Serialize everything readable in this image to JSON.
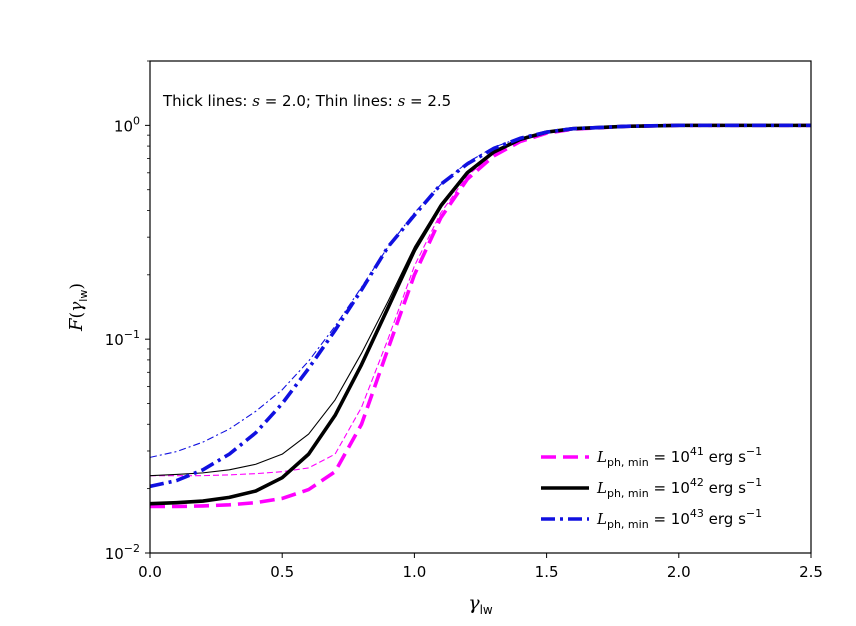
{
  "chart_data": {
    "type": "line",
    "title": "",
    "xlabel": "γ_lw",
    "ylabel": "F(γ_lw)",
    "xlim": [
      0.0,
      2.5
    ],
    "ylim": [
      0.01,
      2.0
    ],
    "yscale": "log",
    "x_ticks": [
      0.0,
      0.5,
      1.0,
      1.5,
      2.0,
      2.5
    ],
    "x_tick_labels": [
      "0.0",
      "0.5",
      "1.0",
      "1.5",
      "2.0",
      "2.5"
    ],
    "y_ticks": [
      0.01,
      0.1,
      1.0
    ],
    "y_tick_labels": [
      "10^-2",
      "10^-1",
      "10^0"
    ],
    "grid": false,
    "legend_position": "lower-right",
    "annotation": "Thick lines: s = 2.0; Thin lines: s = 2.5",
    "colors": {
      "magenta": "#ff00ff",
      "black": "#000000",
      "blue": "#1010e0"
    },
    "series": [
      {
        "name": "L_ph,min = 10^41 erg s^-1",
        "legend_label": {
          "sym": "L",
          "sub": "ph, min",
          "eq": " = 10",
          "exp": "41",
          "unit": " erg s",
          "uexp": "−1"
        },
        "color": "#ff00ff",
        "dash": "dashed",
        "width": "thick",
        "x": [
          0.0,
          0.1,
          0.2,
          0.3,
          0.4,
          0.5,
          0.6,
          0.7,
          0.8,
          0.9,
          1.0,
          1.1,
          1.2,
          1.3,
          1.4,
          1.5,
          1.6,
          1.8,
          2.0,
          2.2,
          2.5
        ],
        "y": [
          0.0165,
          0.0165,
          0.0166,
          0.0168,
          0.0172,
          0.018,
          0.0198,
          0.024,
          0.04,
          0.09,
          0.2,
          0.37,
          0.56,
          0.72,
          0.84,
          0.92,
          0.96,
          0.99,
          1.0,
          1.0,
          1.0
        ]
      },
      {
        "name": "L_ph,min = 10^42 erg s^-1",
        "legend_label": {
          "sym": "L",
          "sub": "ph, min",
          "eq": " = 10",
          "exp": "42",
          "unit": " erg s",
          "uexp": "−1"
        },
        "color": "#000000",
        "dash": "solid",
        "width": "thick",
        "x": [
          0.0,
          0.1,
          0.2,
          0.3,
          0.4,
          0.5,
          0.6,
          0.7,
          0.8,
          0.9,
          1.0,
          1.1,
          1.2,
          1.3,
          1.4,
          1.5,
          1.6,
          1.8,
          2.0,
          2.2,
          2.5
        ],
        "y": [
          0.017,
          0.0172,
          0.0175,
          0.0182,
          0.0195,
          0.0225,
          0.029,
          0.044,
          0.076,
          0.14,
          0.26,
          0.42,
          0.6,
          0.75,
          0.86,
          0.93,
          0.965,
          0.99,
          1.0,
          1.0,
          1.0
        ]
      },
      {
        "name": "L_ph,min = 10^43 erg s^-1",
        "legend_label": {
          "sym": "L",
          "sub": "ph, min",
          "eq": " = 10",
          "exp": "43",
          "unit": " erg s",
          "uexp": "−1"
        },
        "color": "#1010e0",
        "dash": "dashdot",
        "width": "thick",
        "x": [
          0.0,
          0.1,
          0.2,
          0.3,
          0.4,
          0.5,
          0.6,
          0.7,
          0.8,
          0.9,
          1.0,
          1.1,
          1.2,
          1.3,
          1.4,
          1.5,
          1.6,
          1.8,
          2.0,
          2.2,
          2.5
        ],
        "y": [
          0.0205,
          0.0218,
          0.0245,
          0.029,
          0.0365,
          0.05,
          0.073,
          0.11,
          0.17,
          0.27,
          0.38,
          0.53,
          0.66,
          0.78,
          0.87,
          0.93,
          0.965,
          0.99,
          1.0,
          1.0,
          1.0
        ]
      },
      {
        "color": "#ff00ff",
        "dash": "dashed",
        "width": "thin",
        "x": [
          0.0,
          0.1,
          0.2,
          0.3,
          0.4,
          0.5,
          0.6,
          0.7,
          0.8,
          0.9,
          1.0,
          1.1,
          1.2,
          1.3,
          1.4,
          1.5,
          1.6,
          1.8,
          2.0,
          2.2,
          2.5
        ],
        "y": [
          0.023,
          0.023,
          0.023,
          0.0232,
          0.0235,
          0.024,
          0.025,
          0.029,
          0.048,
          0.1,
          0.22,
          0.39,
          0.58,
          0.74,
          0.85,
          0.93,
          0.965,
          0.99,
          1.0,
          1.0,
          1.0
        ]
      },
      {
        "color": "#000000",
        "dash": "solid",
        "width": "thin",
        "x": [
          0.0,
          0.1,
          0.2,
          0.3,
          0.4,
          0.5,
          0.6,
          0.7,
          0.8,
          0.9,
          1.0,
          1.1,
          1.2,
          1.3,
          1.4,
          1.5,
          1.6,
          1.8,
          2.0,
          2.2,
          2.5
        ],
        "y": [
          0.023,
          0.0233,
          0.0237,
          0.0245,
          0.026,
          0.029,
          0.036,
          0.052,
          0.086,
          0.15,
          0.27,
          0.43,
          0.61,
          0.76,
          0.865,
          0.935,
          0.97,
          0.99,
          1.0,
          1.0,
          1.0
        ]
      },
      {
        "color": "#1010e0",
        "dash": "dashdot",
        "width": "thin",
        "x": [
          0.0,
          0.1,
          0.2,
          0.3,
          0.4,
          0.5,
          0.6,
          0.7,
          0.8,
          0.9,
          1.0,
          1.1,
          1.2,
          1.3,
          1.4,
          1.5,
          1.6,
          1.8,
          2.0,
          2.2,
          2.5
        ],
        "y": [
          0.028,
          0.0298,
          0.033,
          0.038,
          0.046,
          0.058,
          0.079,
          0.115,
          0.175,
          0.27,
          0.39,
          0.53,
          0.67,
          0.79,
          0.875,
          0.935,
          0.97,
          0.99,
          1.0,
          1.0,
          1.0
        ]
      }
    ]
  }
}
